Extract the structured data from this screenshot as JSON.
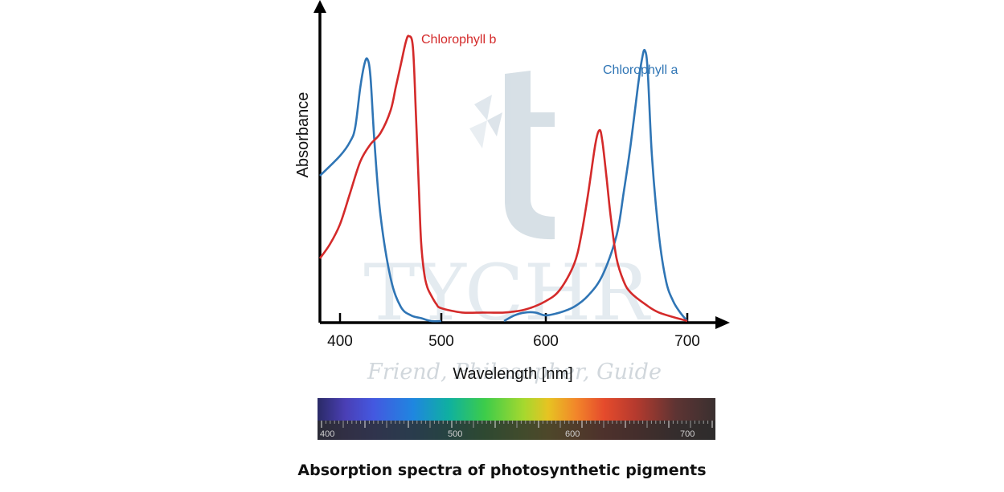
{
  "chart_data": {
    "type": "line",
    "title": "Absorption spectra of photosynthetic pigments",
    "xlabel": "Wavelength [nm]",
    "ylabel": "Absorbance",
    "xlim": [
      380,
      710
    ],
    "ylim": [
      0,
      1
    ],
    "xticks": [
      400,
      500,
      600,
      700
    ],
    "grid": false,
    "series": [
      {
        "name": "Chlorophyll a",
        "color": "#2f75b5",
        "x": [
          380,
          400,
          410,
          415,
          420,
          424,
          427,
          430,
          434,
          440,
          450,
          460,
          470,
          480,
          490,
          500,
          560,
          570,
          580,
          590,
          600,
          610,
          620,
          630,
          640,
          650,
          655,
          660,
          665,
          668,
          670,
          672,
          675,
          680,
          685,
          690,
          695,
          700
        ],
        "y": [
          0.51,
          0.58,
          0.63,
          0.68,
          0.82,
          0.9,
          0.92,
          0.86,
          0.63,
          0.37,
          0.15,
          0.05,
          0.02,
          0.01,
          0.0,
          0.0,
          0.0,
          0.02,
          0.03,
          0.03,
          0.02,
          0.03,
          0.05,
          0.09,
          0.16,
          0.3,
          0.45,
          0.62,
          0.82,
          0.92,
          0.95,
          0.88,
          0.58,
          0.3,
          0.14,
          0.07,
          0.03,
          0.0
        ]
      },
      {
        "name": "Chlorophyll b",
        "color": "#d42a2a",
        "x": [
          380,
          390,
          400,
          410,
          420,
          430,
          440,
          450,
          455,
          460,
          465,
          468,
          472,
          475,
          478,
          480,
          483,
          486,
          490,
          495,
          500,
          520,
          540,
          560,
          580,
          600,
          610,
          620,
          625,
          630,
          635,
          638,
          640,
          643,
          646,
          650,
          655,
          660,
          670,
          680,
          700
        ],
        "y": [
          0.22,
          0.27,
          0.34,
          0.45,
          0.56,
          0.62,
          0.66,
          0.74,
          0.82,
          0.9,
          0.98,
          1.0,
          0.96,
          0.72,
          0.45,
          0.28,
          0.17,
          0.12,
          0.09,
          0.06,
          0.045,
          0.03,
          0.03,
          0.03,
          0.04,
          0.07,
          0.11,
          0.2,
          0.3,
          0.45,
          0.62,
          0.67,
          0.63,
          0.5,
          0.36,
          0.22,
          0.14,
          0.1,
          0.06,
          0.03,
          0.0
        ]
      }
    ],
    "spectrum_bar": {
      "tick_labels": [
        "400",
        "500",
        "600",
        "700"
      ]
    }
  },
  "watermark": {
    "text": "TYCHR",
    "tagline": "Friend, Philosopher, Guide"
  },
  "caption": "Absorption spectra of photosynthetic pigments"
}
